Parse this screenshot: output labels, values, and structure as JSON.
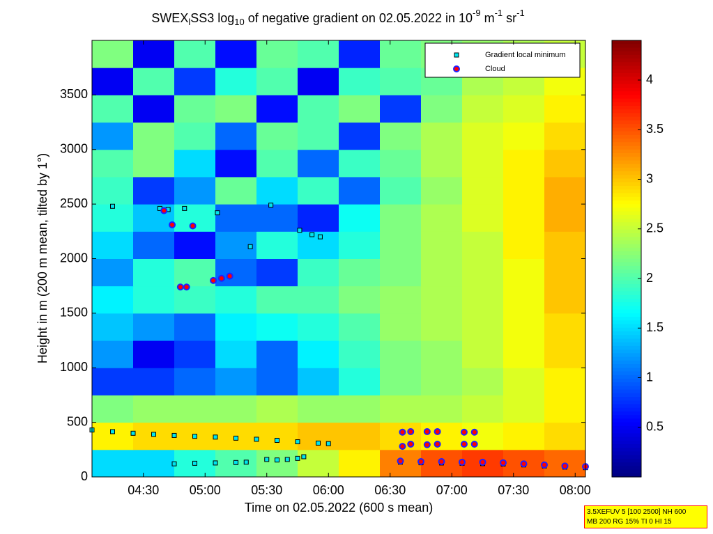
{
  "chart_data": {
    "type": "heatmap",
    "title_parts": [
      "SWEX",
      "l",
      "SS3 log",
      "10",
      " of negative gradient on 02.05.2022 in 10",
      "-9",
      " m",
      "-1",
      " sr",
      "-1"
    ],
    "x_label": "Time on 02.05.2022 (600 s mean)",
    "y_label": "Height in m (200 m mean, tilted by 1°)",
    "xlim": [
      245,
      485
    ],
    "xticks": [
      {
        "value": 270,
        "label": "04:30"
      },
      {
        "value": 300,
        "label": "05:00"
      },
      {
        "value": 330,
        "label": "05:30"
      },
      {
        "value": 360,
        "label": "06:00"
      },
      {
        "value": 390,
        "label": "06:30"
      },
      {
        "value": 420,
        "label": "07:00"
      },
      {
        "value": 450,
        "label": "07:30"
      },
      {
        "value": 480,
        "label": "08:00"
      }
    ],
    "ylim": [
      0,
      4000
    ],
    "yticks": [
      0,
      500,
      1000,
      1500,
      2000,
      2500,
      3000,
      3500
    ],
    "clim": [
      0,
      4.4
    ],
    "cticks": [
      0.5,
      1,
      1.5,
      2,
      2.5,
      3,
      3.5,
      4
    ],
    "colormap": "jet",
    "x_bins": [
      245,
      265,
      285,
      305,
      325,
      345,
      365,
      385,
      405,
      425,
      445,
      465,
      485
    ],
    "y_bins": [
      0,
      250,
      500,
      750,
      1000,
      1250,
      1500,
      1750,
      2000,
      2250,
      2500,
      2750,
      3000,
      3250,
      3500,
      3750,
      4000
    ],
    "z": [
      [
        1.5,
        1.5,
        1.8,
        2,
        2.2,
        2.5,
        2.8,
        3.3,
        3.5,
        3.6,
        3.5,
        3.4
      ],
      [
        2.8,
        2.9,
        2.9,
        2.9,
        2.9,
        3.0,
        3.0,
        2.9,
        2.8,
        2.7,
        2.8,
        2.9
      ],
      [
        2.2,
        2.3,
        2.3,
        2.3,
        2.4,
        2.3,
        2.3,
        2.4,
        2.4,
        2.5,
        2.6,
        2.8
      ],
      [
        0.8,
        0.8,
        1.0,
        1.2,
        1.0,
        1.4,
        1.8,
        2.2,
        2.3,
        2.4,
        2.6,
        2.8
      ],
      [
        1.2,
        0.5,
        0.8,
        1.5,
        1.0,
        1.6,
        1.9,
        2.2,
        2.3,
        2.5,
        2.7,
        2.9
      ],
      [
        1.4,
        1.2,
        1.0,
        1.6,
        1.7,
        1.8,
        2.0,
        2.3,
        2.4,
        2.5,
        2.7,
        2.9
      ],
      [
        1.6,
        1.8,
        1.9,
        1.8,
        2.0,
        2.0,
        2.2,
        2.3,
        2.4,
        2.5,
        2.7,
        3.0
      ],
      [
        1.2,
        1.8,
        2.0,
        1.0,
        0.8,
        1.9,
        2.1,
        2.2,
        2.4,
        2.5,
        2.7,
        3.0
      ],
      [
        1.5,
        1.0,
        0.6,
        1.2,
        1.8,
        1.5,
        1.8,
        2.2,
        2.4,
        2.5,
        2.8,
        3.0
      ],
      [
        1.8,
        1.4,
        1.8,
        1.0,
        1.0,
        0.7,
        1.7,
        2.2,
        2.4,
        2.6,
        2.8,
        3.1
      ],
      [
        1.9,
        0.8,
        1.2,
        2.1,
        1.5,
        1.9,
        1.0,
        2.0,
        2.3,
        2.6,
        2.8,
        3.1
      ],
      [
        2.0,
        2.2,
        1.5,
        0.6,
        2.0,
        1.0,
        1.9,
        2.1,
        2.4,
        2.6,
        2.8,
        3.0
      ],
      [
        1.2,
        2.2,
        2.0,
        1.0,
        2.1,
        2.0,
        0.8,
        2.2,
        2.4,
        2.6,
        2.7,
        2.9
      ],
      [
        2.0,
        0.5,
        2.1,
        2.2,
        0.6,
        2.0,
        2.2,
        0.8,
        2.2,
        2.5,
        2.6,
        2.8
      ],
      [
        0.5,
        2.0,
        0.8,
        1.8,
        2.0,
        0.5,
        1.9,
        2.0,
        2.1,
        2.4,
        2.5,
        2.7
      ],
      [
        2.2,
        0.5,
        2.0,
        0.6,
        2.1,
        2.0,
        0.7,
        2.1,
        2.2,
        2.3,
        2.4,
        2.5
      ]
    ],
    "series": [
      {
        "name": "Gradient local minimum",
        "marker": "square",
        "color": "#00e5ee",
        "x": [
          245,
          255,
          265,
          275,
          285,
          295,
          305,
          315,
          325,
          335,
          345,
          355,
          360,
          285,
          295,
          305,
          315,
          320,
          330,
          335,
          340,
          345,
          348,
          395,
          405,
          415,
          425,
          435,
          445,
          455,
          465,
          475,
          485,
          255,
          278,
          282,
          290,
          306,
          332,
          322,
          346,
          352,
          356
        ],
        "y": [
          430,
          415,
          400,
          390,
          380,
          372,
          365,
          355,
          345,
          335,
          322,
          310,
          305,
          120,
          125,
          128,
          132,
          135,
          160,
          155,
          160,
          170,
          185,
          135,
          130,
          128,
          125,
          122,
          118,
          110,
          100,
          90,
          85,
          2480,
          2460,
          2450,
          2460,
          2420,
          2490,
          2110,
          2260,
          2220,
          2200
        ]
      },
      {
        "name": "Cloud",
        "marker": "circle",
        "color": "#ff0000",
        "x": [
          396,
          400,
          408,
          413,
          396,
          400,
          408,
          413,
          426,
          431,
          426,
          431,
          395,
          405,
          415,
          425,
          435,
          445,
          455,
          465,
          475,
          485,
          280,
          284,
          294,
          288,
          291,
          304,
          308,
          312
        ],
        "y": [
          410,
          415,
          415,
          415,
          280,
          300,
          295,
          300,
          410,
          410,
          300,
          300,
          145,
          140,
          140,
          135,
          135,
          130,
          120,
          110,
          100,
          95,
          2440,
          2310,
          2300,
          1740,
          1740,
          1800,
          1820,
          1840
        ]
      }
    ],
    "info_lines": [
      "3.5XEFUV 5 [100 2500] NH 600",
      "MB 200 RG 15% TI 0 HI 15"
    ]
  }
}
